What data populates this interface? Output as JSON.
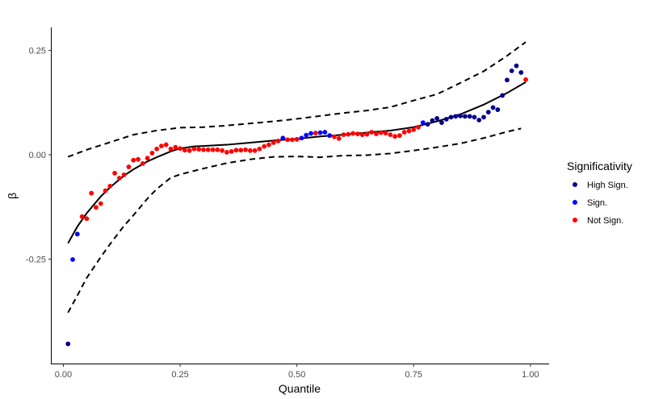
{
  "chart_data": {
    "type": "scatter",
    "title": "",
    "xlabel": "Quantile",
    "ylabel": "β",
    "xlim": [
      -0.025,
      1.04
    ],
    "ylim": [
      -0.5,
      0.305
    ],
    "x_ticks": [
      0.0,
      0.25,
      0.5,
      0.75,
      1.0
    ],
    "x_tick_labels": [
      "0.00",
      "0.25",
      "0.50",
      "0.75",
      "1.00"
    ],
    "y_ticks": [
      -0.25,
      0.0,
      0.25
    ],
    "y_tick_labels": [
      "-0.25",
      "0.00",
      "0.25"
    ],
    "grid": false,
    "legend": {
      "title": "Significativity",
      "position": "right",
      "entries": [
        {
          "label": "High Sign.",
          "color": "#00008B"
        },
        {
          "label": "Sign.",
          "color": "#0000FF"
        },
        {
          "label": "Not Sign.",
          "color": "#FF0000"
        }
      ]
    },
    "points": [
      {
        "x": 0.01,
        "y": -0.453,
        "g": 0
      },
      {
        "x": 0.02,
        "y": -0.251,
        "g": 1
      },
      {
        "x": 0.03,
        "y": -0.19,
        "g": 1
      },
      {
        "x": 0.04,
        "y": -0.148,
        "g": 2
      },
      {
        "x": 0.05,
        "y": -0.153,
        "g": 2
      },
      {
        "x": 0.06,
        "y": -0.092,
        "g": 2
      },
      {
        "x": 0.07,
        "y": -0.126,
        "g": 2
      },
      {
        "x": 0.08,
        "y": -0.117,
        "g": 2
      },
      {
        "x": 0.09,
        "y": -0.086,
        "g": 2
      },
      {
        "x": 0.1,
        "y": -0.075,
        "g": 2
      },
      {
        "x": 0.11,
        "y": -0.044,
        "g": 2
      },
      {
        "x": 0.12,
        "y": -0.056,
        "g": 2
      },
      {
        "x": 0.13,
        "y": -0.048,
        "g": 2
      },
      {
        "x": 0.14,
        "y": -0.029,
        "g": 2
      },
      {
        "x": 0.15,
        "y": -0.013,
        "g": 2
      },
      {
        "x": 0.16,
        "y": -0.011,
        "g": 2
      },
      {
        "x": 0.17,
        "y": -0.021,
        "g": 2
      },
      {
        "x": 0.18,
        "y": -0.008,
        "g": 2
      },
      {
        "x": 0.19,
        "y": 0.004,
        "g": 2
      },
      {
        "x": 0.2,
        "y": 0.014,
        "g": 2
      },
      {
        "x": 0.21,
        "y": 0.021,
        "g": 2
      },
      {
        "x": 0.22,
        "y": 0.024,
        "g": 2
      },
      {
        "x": 0.23,
        "y": 0.014,
        "g": 2
      },
      {
        "x": 0.24,
        "y": 0.018,
        "g": 2
      },
      {
        "x": 0.25,
        "y": 0.015,
        "g": 2
      },
      {
        "x": 0.26,
        "y": 0.011,
        "g": 2
      },
      {
        "x": 0.27,
        "y": 0.01,
        "g": 2
      },
      {
        "x": 0.28,
        "y": 0.014,
        "g": 2
      },
      {
        "x": 0.29,
        "y": 0.013,
        "g": 2
      },
      {
        "x": 0.3,
        "y": 0.012,
        "g": 2
      },
      {
        "x": 0.31,
        "y": 0.012,
        "g": 2
      },
      {
        "x": 0.32,
        "y": 0.012,
        "g": 2
      },
      {
        "x": 0.33,
        "y": 0.012,
        "g": 2
      },
      {
        "x": 0.34,
        "y": 0.01,
        "g": 2
      },
      {
        "x": 0.35,
        "y": 0.006,
        "g": 2
      },
      {
        "x": 0.36,
        "y": 0.008,
        "g": 2
      },
      {
        "x": 0.37,
        "y": 0.011,
        "g": 2
      },
      {
        "x": 0.38,
        "y": 0.011,
        "g": 2
      },
      {
        "x": 0.39,
        "y": 0.012,
        "g": 2
      },
      {
        "x": 0.4,
        "y": 0.01,
        "g": 2
      },
      {
        "x": 0.41,
        "y": 0.01,
        "g": 2
      },
      {
        "x": 0.42,
        "y": 0.014,
        "g": 2
      },
      {
        "x": 0.43,
        "y": 0.02,
        "g": 2
      },
      {
        "x": 0.44,
        "y": 0.024,
        "g": 2
      },
      {
        "x": 0.45,
        "y": 0.029,
        "g": 2
      },
      {
        "x": 0.46,
        "y": 0.033,
        "g": 2
      },
      {
        "x": 0.47,
        "y": 0.04,
        "g": 1
      },
      {
        "x": 0.48,
        "y": 0.036,
        "g": 2
      },
      {
        "x": 0.49,
        "y": 0.036,
        "g": 2
      },
      {
        "x": 0.5,
        "y": 0.037,
        "g": 2
      },
      {
        "x": 0.51,
        "y": 0.04,
        "g": 1
      },
      {
        "x": 0.52,
        "y": 0.047,
        "g": 1
      },
      {
        "x": 0.53,
        "y": 0.051,
        "g": 1
      },
      {
        "x": 0.54,
        "y": 0.052,
        "g": 2
      },
      {
        "x": 0.55,
        "y": 0.053,
        "g": 1
      },
      {
        "x": 0.56,
        "y": 0.054,
        "g": 1
      },
      {
        "x": 0.57,
        "y": 0.046,
        "g": 1
      },
      {
        "x": 0.58,
        "y": 0.043,
        "g": 2
      },
      {
        "x": 0.59,
        "y": 0.039,
        "g": 2
      },
      {
        "x": 0.6,
        "y": 0.048,
        "g": 2
      },
      {
        "x": 0.61,
        "y": 0.049,
        "g": 2
      },
      {
        "x": 0.62,
        "y": 0.051,
        "g": 2
      },
      {
        "x": 0.63,
        "y": 0.05,
        "g": 2
      },
      {
        "x": 0.64,
        "y": 0.048,
        "g": 2
      },
      {
        "x": 0.65,
        "y": 0.049,
        "g": 2
      },
      {
        "x": 0.66,
        "y": 0.054,
        "g": 2
      },
      {
        "x": 0.67,
        "y": 0.05,
        "g": 2
      },
      {
        "x": 0.68,
        "y": 0.053,
        "g": 2
      },
      {
        "x": 0.69,
        "y": 0.052,
        "g": 2
      },
      {
        "x": 0.7,
        "y": 0.048,
        "g": 2
      },
      {
        "x": 0.71,
        "y": 0.044,
        "g": 2
      },
      {
        "x": 0.72,
        "y": 0.046,
        "g": 2
      },
      {
        "x": 0.73,
        "y": 0.054,
        "g": 2
      },
      {
        "x": 0.74,
        "y": 0.057,
        "g": 2
      },
      {
        "x": 0.75,
        "y": 0.06,
        "g": 2
      },
      {
        "x": 0.76,
        "y": 0.066,
        "g": 2
      },
      {
        "x": 0.77,
        "y": 0.077,
        "g": 1
      },
      {
        "x": 0.78,
        "y": 0.073,
        "g": 0
      },
      {
        "x": 0.79,
        "y": 0.082,
        "g": 0
      },
      {
        "x": 0.8,
        "y": 0.087,
        "g": 0
      },
      {
        "x": 0.81,
        "y": 0.077,
        "g": 0
      },
      {
        "x": 0.82,
        "y": 0.085,
        "g": 0
      },
      {
        "x": 0.83,
        "y": 0.09,
        "g": 0
      },
      {
        "x": 0.84,
        "y": 0.092,
        "g": 0
      },
      {
        "x": 0.85,
        "y": 0.093,
        "g": 0
      },
      {
        "x": 0.86,
        "y": 0.092,
        "g": 0
      },
      {
        "x": 0.87,
        "y": 0.092,
        "g": 0
      },
      {
        "x": 0.88,
        "y": 0.09,
        "g": 0
      },
      {
        "x": 0.89,
        "y": 0.083,
        "g": 0
      },
      {
        "x": 0.9,
        "y": 0.09,
        "g": 0
      },
      {
        "x": 0.91,
        "y": 0.102,
        "g": 0
      },
      {
        "x": 0.92,
        "y": 0.113,
        "g": 0
      },
      {
        "x": 0.93,
        "y": 0.108,
        "g": 0
      },
      {
        "x": 0.94,
        "y": 0.142,
        "g": 0
      },
      {
        "x": 0.95,
        "y": 0.179,
        "g": 0
      },
      {
        "x": 0.96,
        "y": 0.201,
        "g": 0
      },
      {
        "x": 0.97,
        "y": 0.213,
        "g": 0
      },
      {
        "x": 0.98,
        "y": 0.197,
        "g": 0
      },
      {
        "x": 0.99,
        "y": 0.18,
        "g": 2
      }
    ],
    "fit_line": [
      [
        0.01,
        -0.212
      ],
      [
        0.03,
        -0.172
      ],
      [
        0.05,
        -0.14
      ],
      [
        0.08,
        -0.1
      ],
      [
        0.1,
        -0.078
      ],
      [
        0.13,
        -0.05
      ],
      [
        0.15,
        -0.035
      ],
      [
        0.18,
        -0.016
      ],
      [
        0.2,
        -0.006
      ],
      [
        0.23,
        0.008
      ],
      [
        0.25,
        0.015
      ],
      [
        0.28,
        0.02
      ],
      [
        0.3,
        0.021
      ],
      [
        0.35,
        0.024
      ],
      [
        0.4,
        0.029
      ],
      [
        0.45,
        0.034
      ],
      [
        0.5,
        0.038
      ],
      [
        0.55,
        0.044
      ],
      [
        0.6,
        0.048
      ],
      [
        0.65,
        0.053
      ],
      [
        0.7,
        0.058
      ],
      [
        0.75,
        0.066
      ],
      [
        0.8,
        0.08
      ],
      [
        0.85,
        0.097
      ],
      [
        0.9,
        0.12
      ],
      [
        0.95,
        0.148
      ],
      [
        0.99,
        0.174
      ]
    ],
    "upper_band": [
      [
        0.01,
        -0.005
      ],
      [
        0.05,
        0.012
      ],
      [
        0.1,
        0.03
      ],
      [
        0.15,
        0.048
      ],
      [
        0.2,
        0.058
      ],
      [
        0.25,
        0.065
      ],
      [
        0.3,
        0.066
      ],
      [
        0.35,
        0.07
      ],
      [
        0.4,
        0.075
      ],
      [
        0.45,
        0.08
      ],
      [
        0.5,
        0.086
      ],
      [
        0.55,
        0.093
      ],
      [
        0.6,
        0.1
      ],
      [
        0.65,
        0.106
      ],
      [
        0.7,
        0.114
      ],
      [
        0.75,
        0.13
      ],
      [
        0.8,
        0.145
      ],
      [
        0.85,
        0.172
      ],
      [
        0.9,
        0.2
      ],
      [
        0.95,
        0.237
      ],
      [
        0.99,
        0.27
      ]
    ],
    "lower_band": [
      [
        0.01,
        -0.378
      ],
      [
        0.03,
        -0.337
      ],
      [
        0.05,
        -0.295
      ],
      [
        0.08,
        -0.245
      ],
      [
        0.1,
        -0.214
      ],
      [
        0.13,
        -0.17
      ],
      [
        0.15,
        -0.145
      ],
      [
        0.18,
        -0.105
      ],
      [
        0.2,
        -0.082
      ],
      [
        0.23,
        -0.055
      ],
      [
        0.25,
        -0.047
      ],
      [
        0.3,
        -0.033
      ],
      [
        0.35,
        -0.02
      ],
      [
        0.4,
        -0.011
      ],
      [
        0.45,
        -0.005
      ],
      [
        0.5,
        -0.004
      ],
      [
        0.55,
        -0.006
      ],
      [
        0.6,
        -0.002
      ],
      [
        0.65,
        -0.001
      ],
      [
        0.7,
        0.003
      ],
      [
        0.75,
        0.01
      ],
      [
        0.8,
        0.018
      ],
      [
        0.85,
        0.027
      ],
      [
        0.9,
        0.04
      ],
      [
        0.95,
        0.055
      ],
      [
        0.98,
        0.063
      ]
    ]
  }
}
